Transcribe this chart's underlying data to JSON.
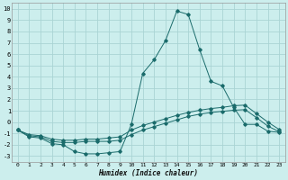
{
  "background_color": "#cceeed",
  "grid_color": "#aad4d4",
  "line_color": "#1a6b6b",
  "xlabel": "Humidex (Indice chaleur)",
  "xlim": [
    -0.5,
    23.5
  ],
  "ylim": [
    -3.5,
    10.5
  ],
  "yticks": [
    -3,
    -2,
    -1,
    0,
    1,
    2,
    3,
    4,
    5,
    6,
    7,
    8,
    9,
    10
  ],
  "xticks": [
    0,
    1,
    2,
    3,
    4,
    5,
    6,
    7,
    8,
    9,
    10,
    11,
    12,
    13,
    14,
    15,
    16,
    17,
    18,
    19,
    20,
    21,
    22,
    23
  ],
  "curve1_x": [
    0,
    1,
    2,
    3,
    4,
    5,
    6,
    7,
    8,
    9,
    10,
    11,
    12,
    13,
    14,
    15,
    16,
    17,
    18,
    19,
    20,
    21,
    22,
    23
  ],
  "curve1_y": [
    -0.7,
    -1.3,
    -1.4,
    -1.9,
    -2.0,
    -2.6,
    -2.8,
    -2.8,
    -2.7,
    -2.6,
    -0.2,
    4.3,
    5.5,
    7.2,
    9.8,
    9.5,
    6.4,
    3.6,
    3.2,
    1.3,
    -0.2,
    -0.2,
    -0.8,
    -0.9
  ],
  "curve2_x": [
    0,
    1,
    2,
    3,
    4,
    5,
    6,
    7,
    8,
    9,
    10,
    11,
    12,
    13,
    14,
    15,
    16,
    17,
    18,
    19,
    20,
    21,
    22,
    23
  ],
  "curve2_y": [
    -0.7,
    -1.2,
    -1.3,
    -1.7,
    -1.8,
    -1.8,
    -1.7,
    -1.7,
    -1.7,
    -1.6,
    -1.1,
    -0.7,
    -0.4,
    -0.1,
    0.2,
    0.5,
    0.7,
    0.85,
    0.95,
    1.05,
    1.1,
    0.4,
    -0.35,
    -0.85
  ],
  "curve3_x": [
    0,
    1,
    2,
    3,
    4,
    5,
    6,
    7,
    8,
    9,
    10,
    11,
    12,
    13,
    14,
    15,
    16,
    17,
    18,
    19,
    20,
    21,
    22,
    23
  ],
  "curve3_y": [
    -0.7,
    -1.1,
    -1.2,
    -1.5,
    -1.6,
    -1.6,
    -1.5,
    -1.5,
    -1.4,
    -1.3,
    -0.7,
    -0.3,
    0.0,
    0.3,
    0.6,
    0.85,
    1.05,
    1.2,
    1.3,
    1.45,
    1.5,
    0.75,
    0.0,
    -0.65
  ]
}
